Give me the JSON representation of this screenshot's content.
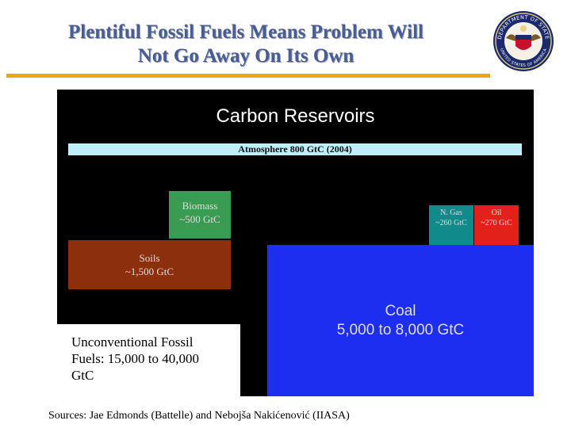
{
  "header": {
    "title_line1": "Plentiful Fossil Fuels Means Problem Will",
    "title_line2": "Not Go Away On Its Own",
    "accent_color": "#f2a31b",
    "title_color": "#4a5d92"
  },
  "seal": {
    "icon": "state-department-seal-icon",
    "text_top": "DEPARTMENT OF STATE",
    "text_bottom": "UNITED STATES OF AMERICA"
  },
  "diagram": {
    "title": "Carbon Reservoirs",
    "atmosphere": {
      "label": "Atmosphere 800 GtC (2004)",
      "color": "#bdeefa"
    },
    "biomass": {
      "line1": "Biomass",
      "line2": "~500 GtC",
      "color": "#3a9b52"
    },
    "soils": {
      "line1": "Soils",
      "line2": "~1,500 GtC",
      "color": "#8c2f0d"
    },
    "natural_gas": {
      "line1": "N. Gas",
      "line2": "~260 GtC",
      "color": "#118a8c"
    },
    "oil": {
      "line1": "Oil",
      "line2": "~270 GtC",
      "color": "#e2211a"
    },
    "coal": {
      "line1": "Coal",
      "line2": "5,000 to 8,000 GtC",
      "color": "#1d2ef0"
    },
    "unconventional": {
      "line1": "Unconventional Fossil",
      "line2": "Fuels:  15,000 to 40,000",
      "line3": "GtC"
    }
  },
  "footer": {
    "sources": "Sources:  Jae Edmonds (Battelle) and Nebojša Nakićenović (IIASA)"
  }
}
